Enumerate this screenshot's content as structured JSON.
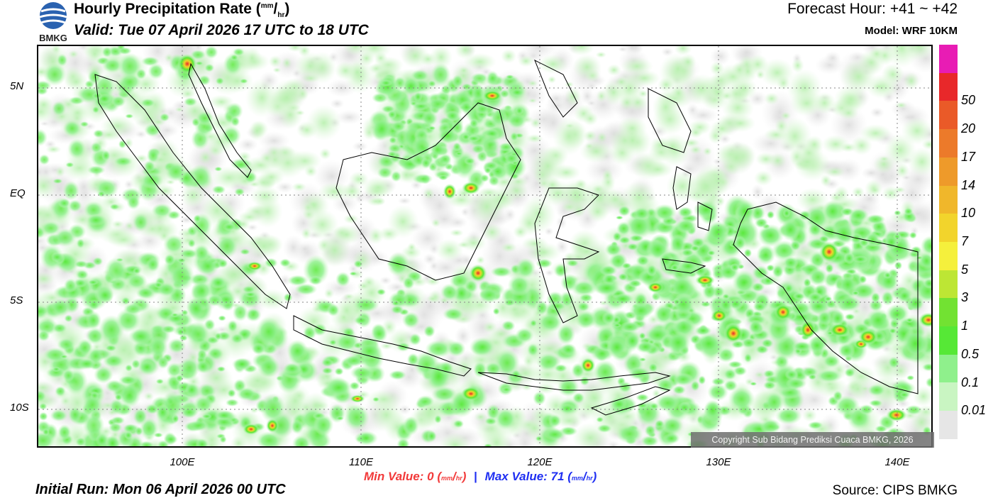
{
  "header": {
    "title_main": "Hourly Precipitation Rate (",
    "title_unit_num": "mm",
    "title_unit_slash": "/",
    "title_unit_den": "hr",
    "title_close": ")",
    "valid": "Valid: Tue 07 April 2026 17 UTC to 18 UTC",
    "forecast_hour": "Forecast Hour: +41 ~ +42",
    "model": "Model: WRF 10KM",
    "logo_text": "BMKG"
  },
  "map": {
    "lat_labels": [
      "5N",
      "EQ",
      "5S",
      "10S"
    ],
    "lon_labels": [
      "100E",
      "110E",
      "120E",
      "130E",
      "140E"
    ],
    "copyright": "Copyright Sub Bidang Prediksi Cuaca BMKG, 2026"
  },
  "stats": {
    "min_label": "Min Value:",
    "min_value": "0",
    "max_label": "Max Value:",
    "max_value": "71",
    "unit_num": "mm",
    "unit_den": "hr",
    "separator": "|"
  },
  "footer": {
    "initial_run": "Initial Run: Mon 06 April 2026 00 UTC",
    "source": "Source: CIPS BMKG"
  },
  "legend": {
    "colors": [
      "#e81cb4",
      "#e8282a",
      "#ea5a28",
      "#ec7a2a",
      "#ee9a2a",
      "#f0b72b",
      "#f2d42c",
      "#f5f03c",
      "#bde634",
      "#72e232",
      "#56e836",
      "#8ff08c",
      "#c9f5c2",
      "#e6e6e6"
    ],
    "labels": [
      "50",
      "20",
      "17",
      "14",
      "10",
      "7",
      "5",
      "3",
      "1",
      "0.5",
      "0.1",
      "0.01"
    ]
  }
}
